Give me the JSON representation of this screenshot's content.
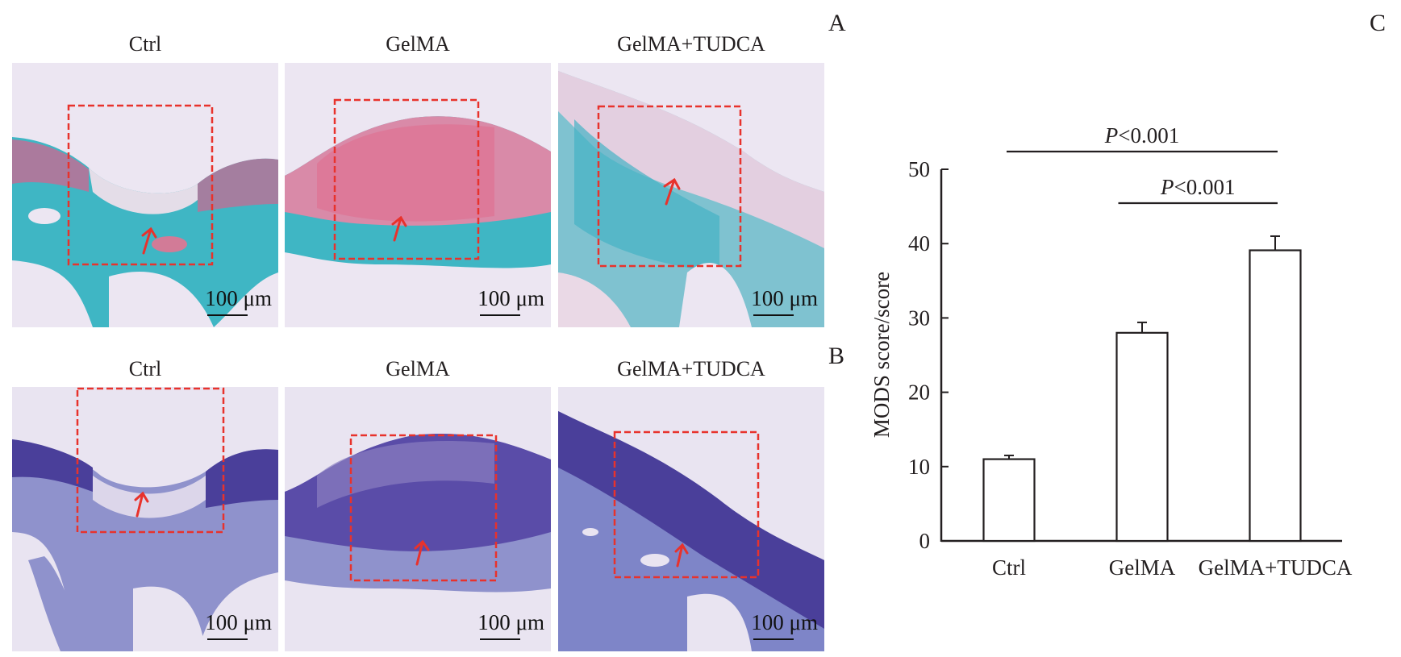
{
  "panel_letters": {
    "a": "A",
    "b": "B",
    "c": "C"
  },
  "row_a": {
    "stain": "safranin-o-fast-green",
    "columns": [
      {
        "title": "Ctrl",
        "scale_label": "100 μm"
      },
      {
        "title": "GelMA",
        "scale_label": "100 μm"
      },
      {
        "title": "GelMA+TUDCA",
        "scale_label": "100 μm"
      }
    ]
  },
  "row_b": {
    "stain": "toluidine-blue",
    "columns": [
      {
        "title": "Ctrl",
        "scale_label": "100 μm"
      },
      {
        "title": "GelMA",
        "scale_label": "100 μm"
      },
      {
        "title": "GelMA+TUDCA",
        "scale_label": "100 μm"
      }
    ]
  },
  "colors": {
    "roi_box": "#e8322c",
    "arrow": "#e8322c",
    "background_tissue": "#ece6f2",
    "fast_green": "#3fb6c4",
    "safranin": "#d9607f",
    "toluidine_dark": "#4a3f9a",
    "toluidine_light": "#8c8fcf",
    "bar_fill": "#ffffff",
    "bar_stroke": "#231f20"
  },
  "chart_data": {
    "type": "bar",
    "title": "",
    "xlabel": "",
    "ylabel": "MODS score/score",
    "categories": [
      "Ctrl",
      "GelMA",
      "GelMA+TUDCA"
    ],
    "values": [
      11.0,
      28.0,
      39.1
    ],
    "error_plus": [
      0.5,
      1.4,
      1.9
    ],
    "ylim": [
      0,
      50
    ],
    "yticks": [
      0,
      10,
      20,
      30,
      40,
      50
    ],
    "ytick_labels": [
      "0",
      "10",
      "20",
      "30",
      "40",
      "50"
    ],
    "grid": false,
    "legend": "none",
    "annotations": [
      {
        "text_italic": "P",
        "text": "<0.001",
        "from": "Ctrl",
        "to": "GelMA+TUDCA",
        "level": 2
      },
      {
        "text_italic": "P",
        "text": "<0.001",
        "from": "GelMA",
        "to": "GelMA+TUDCA",
        "level": 1
      }
    ]
  }
}
